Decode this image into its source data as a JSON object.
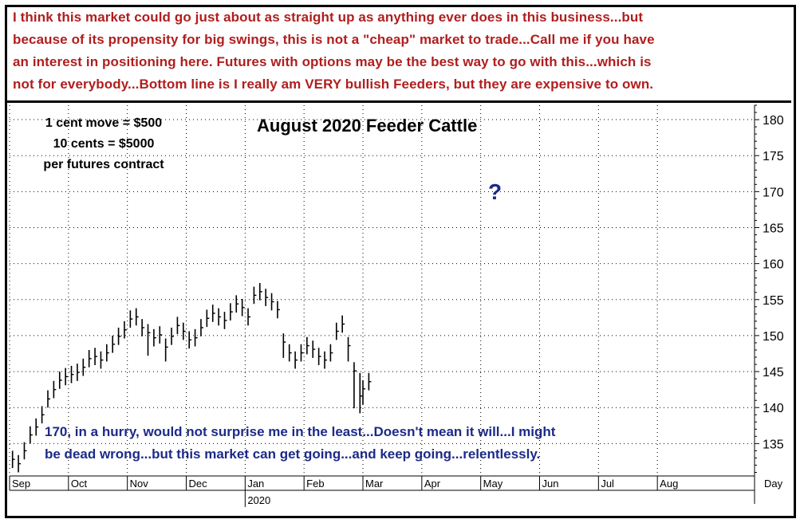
{
  "commentary": {
    "lines": [
      "I think this market could go just about as straight up as anything ever does in this business...but",
      "because of its propensity for big swings, this is not a \"cheap\" market to trade...Call me if you have",
      "an interest in positioning here. Futures with options may be the best way to go with this...which is",
      "not for everybody...Bottom line is I really am VERY bullish Feeders, but they are expensive to own."
    ]
  },
  "chart_note": {
    "line1": "1 cent move = $500",
    "line2": "10 cents = $5000",
    "line3": "per futures contract"
  },
  "forecast_mark": "?",
  "bottom_note": {
    "line1": "170, in a hurry, would not surprise me in the least...Doesn't mean it will...I might",
    "line2": "be dead wrong...but this market can get  going...and keep going...relentlessly."
  },
  "colors": {
    "commentary": "#b01e1e",
    "annotation": "#1c2a8a",
    "bars": "#000000",
    "grid": "#000000"
  },
  "chart_data": {
    "type": "bar",
    "style": "ohlc",
    "title": "August 2020 Feeder Cattle",
    "x_axis_label": "Day",
    "year_label": "2020",
    "months": [
      "Sep",
      "Oct",
      "Nov",
      "Dec",
      "Jan",
      "Feb",
      "Mar",
      "Apr",
      "May",
      "Jun",
      "Jul",
      "Aug"
    ],
    "y_ticks": [
      135,
      140,
      145,
      150,
      155,
      160,
      165,
      170,
      175,
      180
    ],
    "ylim": [
      130.5,
      182
    ],
    "grid": true,
    "y_axis_side": "right",
    "series": [
      {
        "month_index": [
          0.05,
          0.15,
          0.25,
          0.35,
          0.45,
          0.55,
          0.65,
          0.75,
          0.85,
          0.95,
          1.05,
          1.15,
          1.25,
          1.35,
          1.45,
          1.55,
          1.65,
          1.75,
          1.85,
          1.95,
          2.05,
          2.15,
          2.25,
          2.35,
          2.45,
          2.55,
          2.65,
          2.75,
          2.85,
          2.95,
          3.05,
          3.15,
          3.25,
          3.35,
          3.45,
          3.55,
          3.65,
          3.75,
          3.85,
          3.95,
          4.05,
          4.15,
          4.25,
          4.35,
          4.45,
          4.55,
          4.65,
          4.75,
          4.85,
          4.95,
          5.05,
          5.15,
          5.25,
          5.35,
          5.45,
          5.55,
          5.65,
          5.75,
          5.85,
          5.95,
          6.0,
          6.1
        ],
        "close": [
          132.8,
          132.2,
          134.0,
          136.2,
          137.3,
          139.0,
          141.2,
          142.5,
          143.8,
          144.3,
          144.6,
          144.9,
          145.6,
          146.8,
          147.1,
          146.6,
          147.6,
          148.8,
          149.9,
          150.8,
          152.3,
          152.6,
          151.1,
          150.4,
          149.7,
          150.1,
          148.4,
          149.9,
          151.4,
          150.6,
          149.4,
          149.7,
          151.1,
          152.4,
          153.1,
          152.6,
          152.1,
          153.3,
          154.4,
          153.9,
          152.6,
          155.6,
          156.1,
          155.3,
          154.7,
          153.6,
          149.1,
          147.6,
          146.6,
          147.6,
          148.6,
          148.1,
          147.1,
          146.6,
          147.6,
          150.6,
          151.6,
          148.6,
          145.1,
          141.6,
          142.6,
          143.6
        ],
        "high": [
          134.0,
          133.4,
          135.2,
          137.4,
          138.5,
          140.2,
          142.4,
          143.7,
          145.0,
          145.5,
          145.8,
          146.1,
          146.8,
          148.0,
          148.3,
          147.8,
          148.8,
          150.0,
          151.1,
          152.0,
          153.5,
          153.8,
          152.3,
          151.6,
          150.9,
          151.3,
          149.6,
          151.1,
          152.6,
          151.8,
          150.6,
          150.9,
          152.3,
          153.6,
          154.3,
          153.8,
          153.3,
          154.5,
          155.6,
          155.1,
          153.8,
          156.8,
          157.3,
          156.5,
          155.9,
          154.8,
          150.3,
          148.8,
          147.8,
          148.8,
          149.8,
          149.3,
          148.3,
          147.8,
          148.8,
          151.8,
          152.8,
          149.8,
          146.3,
          144.8,
          143.8,
          144.8
        ],
        "low": [
          131.6,
          131.0,
          132.8,
          135.0,
          136.1,
          137.8,
          140.0,
          141.3,
          142.6,
          143.1,
          143.4,
          143.7,
          144.4,
          145.6,
          145.9,
          145.4,
          146.4,
          147.6,
          148.7,
          149.6,
          151.1,
          151.4,
          149.9,
          147.2,
          148.5,
          148.9,
          146.4,
          148.7,
          150.2,
          149.4,
          148.2,
          148.5,
          149.9,
          151.2,
          151.9,
          151.4,
          150.9,
          152.1,
          153.2,
          152.7,
          151.4,
          154.4,
          154.9,
          154.1,
          153.5,
          152.4,
          146.9,
          146.4,
          145.4,
          146.4,
          147.4,
          146.9,
          145.9,
          145.4,
          146.4,
          149.4,
          150.4,
          146.4,
          139.9,
          139.2,
          140.4,
          142.4
        ]
      }
    ]
  }
}
